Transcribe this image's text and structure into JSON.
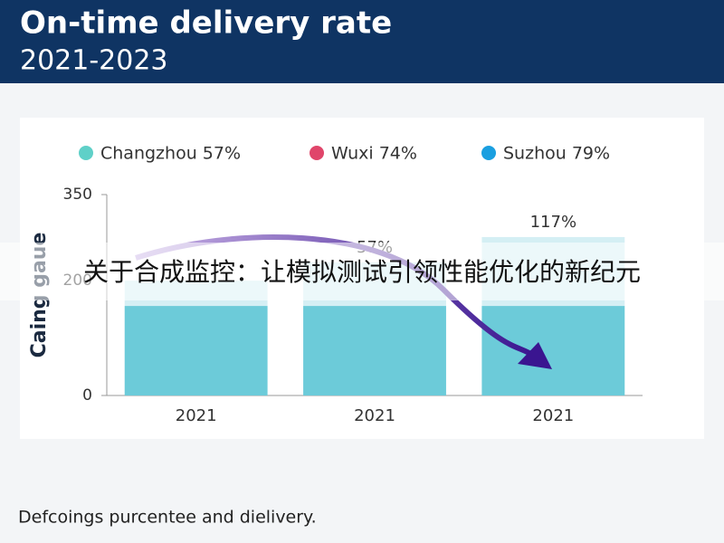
{
  "chart_data": {
    "type": "stacked-bar",
    "title": "On-time delivery rate",
    "subtitle": "2021-2023",
    "y_label": "Caing gaue",
    "legend": [
      {
        "label": "Changzhou 57%",
        "color": "#5fd0c8"
      },
      {
        "label": "Wuxi 74%",
        "color": "#e0456a"
      },
      {
        "label": "Suzhou 79%",
        "color": "#1a9fe0"
      }
    ],
    "categories": [
      "2021",
      "2021",
      "2021"
    ],
    "series": [
      {
        "color": "#6ccbd9",
        "values": [
          156,
          156,
          156
        ]
      },
      {
        "color": "#d4eff4",
        "values": [
          44,
          76,
          120
        ]
      }
    ],
    "annotations": [
      null,
      "57%",
      "117%"
    ],
    "ylim": [
      0,
      350
    ],
    "yticks": [
      0,
      200,
      350
    ],
    "overlay": "关于合成监控：让模拟测试引领性能优化的新纪元",
    "footnote": "Defcoings purcentee and dielivery."
  }
}
